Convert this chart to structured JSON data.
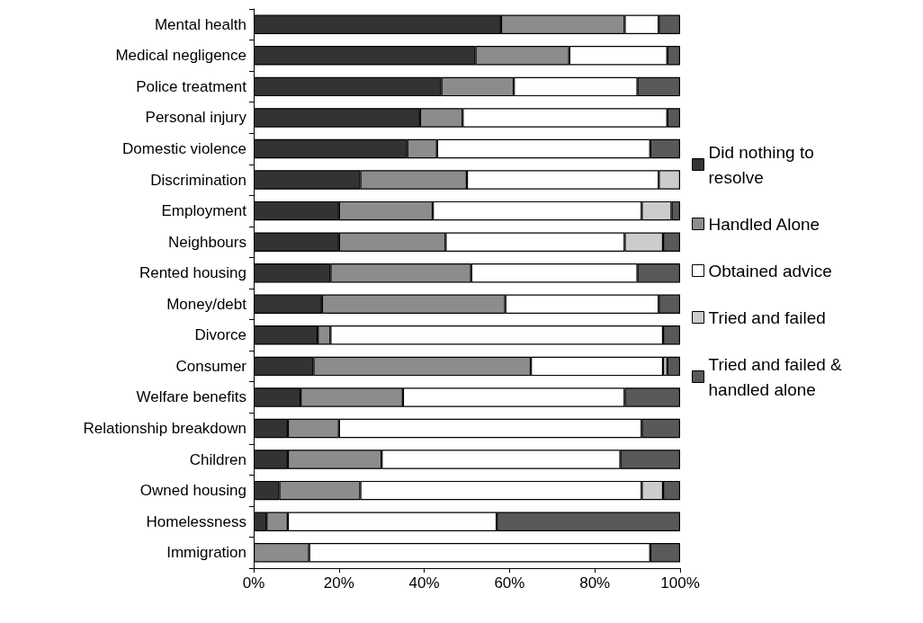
{
  "chart_data": {
    "type": "bar",
    "orientation": "horizontal",
    "stacked": true,
    "categories": [
      "Mental health",
      "Medical negligence",
      "Police treatment",
      "Personal injury",
      "Domestic violence",
      "Discrimination",
      "Employment",
      "Neighbours",
      "Rented housing",
      "Money/debt",
      "Divorce",
      "Consumer",
      "Welfare benefits",
      "Relationship breakdown",
      "Children",
      "Owned housing",
      "Homelessness",
      "Immigration"
    ],
    "series": [
      {
        "name": "Did nothing to resolve",
        "color": "#333333",
        "values": [
          58,
          52,
          44,
          39,
          36,
          25,
          20,
          20,
          18,
          16,
          15,
          14,
          11,
          8,
          8,
          6,
          3,
          0
        ]
      },
      {
        "name": "Handled Alone",
        "color": "#8c8c8c",
        "values": [
          29,
          22,
          17,
          10,
          7,
          25,
          22,
          25,
          33,
          43,
          3,
          51,
          24,
          12,
          22,
          19,
          5,
          13
        ]
      },
      {
        "name": "Obtained advice",
        "color": "#ffffff",
        "values": [
          8,
          23,
          29,
          48,
          50,
          45,
          49,
          42,
          39,
          36,
          78,
          31,
          52,
          71,
          56,
          66,
          49,
          80
        ]
      },
      {
        "name": "Tried and failed",
        "color": "#cccccc",
        "values": [
          0,
          0,
          0,
          0,
          0,
          5,
          7,
          9,
          0,
          0,
          0,
          1,
          0,
          0,
          0,
          5,
          0,
          0
        ]
      },
      {
        "name": "Tried and failed & handled alone",
        "color": "#595959",
        "values": [
          5,
          3,
          10,
          3,
          7,
          0,
          2,
          4,
          10,
          5,
          4,
          3,
          13,
          9,
          14,
          4,
          43,
          7
        ]
      }
    ],
    "xlim": [
      0,
      100
    ],
    "xticks": [
      {
        "value": 0,
        "label": "0%"
      },
      {
        "value": 20,
        "label": "20%"
      },
      {
        "value": 40,
        "label": "40%"
      },
      {
        "value": 60,
        "label": "60%"
      },
      {
        "value": 80,
        "label": "80%"
      },
      {
        "value": 100,
        "label": "100%"
      }
    ],
    "grid": false,
    "legend": "right"
  }
}
